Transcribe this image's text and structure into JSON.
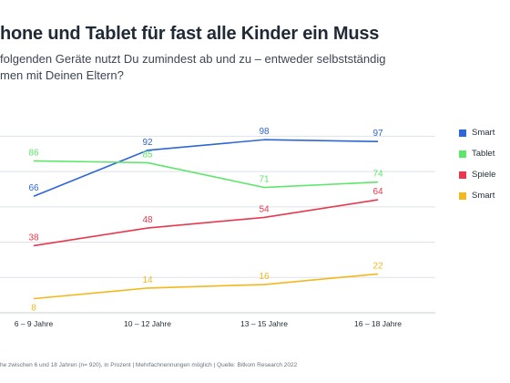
{
  "header": {
    "title": "hone und Tablet für fast alle Kinder ein Muss",
    "subtitle_line1": "folgenden Geräte nutzt Du zumindest ab und zu – entweder selbstständig",
    "subtitle_line2": "men mit Deinen Eltern?"
  },
  "footer": {
    "source": "he zwischen 6 und 18 Jahren (n= 920), in Prozent | Mehrfachnennungen möglich | Quelle: Bitkom Research 2022"
  },
  "chart_data": {
    "type": "line",
    "categories": [
      "6 – 9 Jahre",
      "10 – 12 Jahre",
      "13 – 15 Jahre",
      "16 – 18 Jahre"
    ],
    "ylim": [
      0,
      110
    ],
    "grid": true,
    "legend_position": "right",
    "series": [
      {
        "name": "Smart",
        "color": "#2f66d6",
        "values": [
          66,
          92,
          98,
          97
        ]
      },
      {
        "name": "Tablet",
        "color": "#5ee66a",
        "values": [
          86,
          85,
          71,
          74
        ]
      },
      {
        "name": "Spiele",
        "color": "#e8384f",
        "values": [
          38,
          48,
          54,
          64
        ]
      },
      {
        "name": "Smart",
        "color": "#f2b81c",
        "values": [
          8,
          14,
          16,
          22
        ]
      }
    ]
  }
}
